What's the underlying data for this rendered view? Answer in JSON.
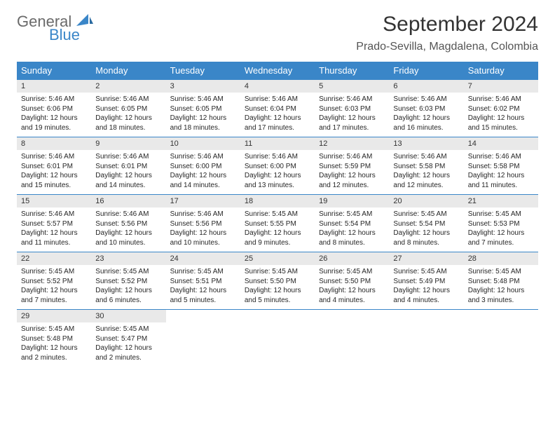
{
  "brand": {
    "general": "General",
    "blue": "Blue"
  },
  "title": "September 2024",
  "location": "Prado-Sevilla, Magdalena, Colombia",
  "colors": {
    "header_bg": "#3a86c8",
    "header_text": "#ffffff",
    "daynum_bg": "#e9e9e9",
    "border": "#3a86c8",
    "brand_gray": "#6a6a6a",
    "brand_blue": "#3a86c8"
  },
  "weekdays": [
    "Sunday",
    "Monday",
    "Tuesday",
    "Wednesday",
    "Thursday",
    "Friday",
    "Saturday"
  ],
  "days": [
    {
      "n": "1",
      "sr": "5:46 AM",
      "ss": "6:06 PM",
      "dl": "12 hours and 19 minutes."
    },
    {
      "n": "2",
      "sr": "5:46 AM",
      "ss": "6:05 PM",
      "dl": "12 hours and 18 minutes."
    },
    {
      "n": "3",
      "sr": "5:46 AM",
      "ss": "6:05 PM",
      "dl": "12 hours and 18 minutes."
    },
    {
      "n": "4",
      "sr": "5:46 AM",
      "ss": "6:04 PM",
      "dl": "12 hours and 17 minutes."
    },
    {
      "n": "5",
      "sr": "5:46 AM",
      "ss": "6:03 PM",
      "dl": "12 hours and 17 minutes."
    },
    {
      "n": "6",
      "sr": "5:46 AM",
      "ss": "6:03 PM",
      "dl": "12 hours and 16 minutes."
    },
    {
      "n": "7",
      "sr": "5:46 AM",
      "ss": "6:02 PM",
      "dl": "12 hours and 15 minutes."
    },
    {
      "n": "8",
      "sr": "5:46 AM",
      "ss": "6:01 PM",
      "dl": "12 hours and 15 minutes."
    },
    {
      "n": "9",
      "sr": "5:46 AM",
      "ss": "6:01 PM",
      "dl": "12 hours and 14 minutes."
    },
    {
      "n": "10",
      "sr": "5:46 AM",
      "ss": "6:00 PM",
      "dl": "12 hours and 14 minutes."
    },
    {
      "n": "11",
      "sr": "5:46 AM",
      "ss": "6:00 PM",
      "dl": "12 hours and 13 minutes."
    },
    {
      "n": "12",
      "sr": "5:46 AM",
      "ss": "5:59 PM",
      "dl": "12 hours and 12 minutes."
    },
    {
      "n": "13",
      "sr": "5:46 AM",
      "ss": "5:58 PM",
      "dl": "12 hours and 12 minutes."
    },
    {
      "n": "14",
      "sr": "5:46 AM",
      "ss": "5:58 PM",
      "dl": "12 hours and 11 minutes."
    },
    {
      "n": "15",
      "sr": "5:46 AM",
      "ss": "5:57 PM",
      "dl": "12 hours and 11 minutes."
    },
    {
      "n": "16",
      "sr": "5:46 AM",
      "ss": "5:56 PM",
      "dl": "12 hours and 10 minutes."
    },
    {
      "n": "17",
      "sr": "5:46 AM",
      "ss": "5:56 PM",
      "dl": "12 hours and 10 minutes."
    },
    {
      "n": "18",
      "sr": "5:45 AM",
      "ss": "5:55 PM",
      "dl": "12 hours and 9 minutes."
    },
    {
      "n": "19",
      "sr": "5:45 AM",
      "ss": "5:54 PM",
      "dl": "12 hours and 8 minutes."
    },
    {
      "n": "20",
      "sr": "5:45 AM",
      "ss": "5:54 PM",
      "dl": "12 hours and 8 minutes."
    },
    {
      "n": "21",
      "sr": "5:45 AM",
      "ss": "5:53 PM",
      "dl": "12 hours and 7 minutes."
    },
    {
      "n": "22",
      "sr": "5:45 AM",
      "ss": "5:52 PM",
      "dl": "12 hours and 7 minutes."
    },
    {
      "n": "23",
      "sr": "5:45 AM",
      "ss": "5:52 PM",
      "dl": "12 hours and 6 minutes."
    },
    {
      "n": "24",
      "sr": "5:45 AM",
      "ss": "5:51 PM",
      "dl": "12 hours and 5 minutes."
    },
    {
      "n": "25",
      "sr": "5:45 AM",
      "ss": "5:50 PM",
      "dl": "12 hours and 5 minutes."
    },
    {
      "n": "26",
      "sr": "5:45 AM",
      "ss": "5:50 PM",
      "dl": "12 hours and 4 minutes."
    },
    {
      "n": "27",
      "sr": "5:45 AM",
      "ss": "5:49 PM",
      "dl": "12 hours and 4 minutes."
    },
    {
      "n": "28",
      "sr": "5:45 AM",
      "ss": "5:48 PM",
      "dl": "12 hours and 3 minutes."
    },
    {
      "n": "29",
      "sr": "5:45 AM",
      "ss": "5:48 PM",
      "dl": "12 hours and 2 minutes."
    },
    {
      "n": "30",
      "sr": "5:45 AM",
      "ss": "5:47 PM",
      "dl": "12 hours and 2 minutes."
    }
  ],
  "layout": {
    "start_offset": 0,
    "total_cells": 35
  },
  "labels": {
    "sunrise": "Sunrise:",
    "sunset": "Sunset:",
    "daylight": "Daylight:"
  }
}
